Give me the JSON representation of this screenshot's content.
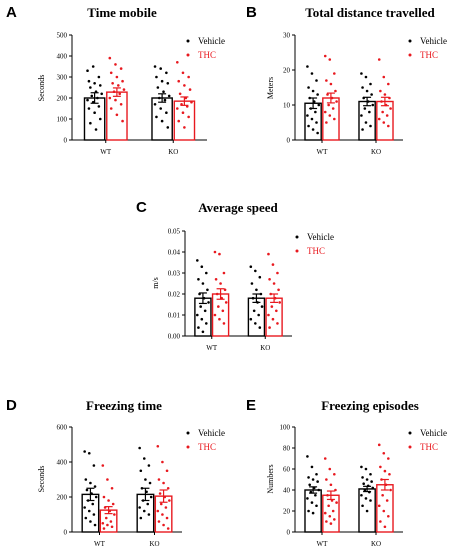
{
  "colors": {
    "vehicle": "#000000",
    "thc": "#e8191f"
  },
  "legend": [
    "Vehicle",
    "THC"
  ],
  "panels": [
    {
      "letter": "A"
    },
    {
      "letter": "B"
    },
    {
      "letter": "C"
    },
    {
      "letter": "D"
    },
    {
      "letter": "E"
    }
  ],
  "chart_data": [
    {
      "type": "bar",
      "title": "Time mobile",
      "ylabel": "Seconds",
      "categories": [
        "WT",
        "KO"
      ],
      "ylim": [
        0,
        500
      ],
      "yticks": [
        "0",
        "100",
        "200",
        "300",
        "400",
        "500"
      ],
      "series": [
        {
          "name": "Vehicle",
          "values": [
            200,
            200
          ],
          "sem": [
            25,
            20
          ],
          "points": [
            [
              330,
              350,
              300,
              280,
              270,
              260,
              250,
              230,
              220,
              210,
              200,
              190,
              180,
              160,
              150,
              130,
              100,
              80,
              50
            ],
            [
              350,
              340,
              320,
              300,
              280,
              270,
              250,
              230,
              210,
              200,
              190,
              170,
              150,
              130,
              110,
              90,
              60
            ]
          ]
        },
        {
          "name": "THC",
          "values": [
            228,
            185
          ],
          "sem": [
            20,
            20
          ],
          "points": [
            [
              390,
              360,
              340,
              320,
              300,
              280,
              270,
              260,
              240,
              230,
              220,
              200,
              190,
              170,
              150,
              120,
              90
            ],
            [
              370,
              320,
              300,
              280,
              260,
              240,
              220,
              200,
              180,
              170,
              160,
              150,
              130,
              110,
              90,
              60
            ]
          ]
        }
      ]
    },
    {
      "type": "bar",
      "title": "Total distance travelled",
      "ylabel": "Meters",
      "categories": [
        "WT",
        "KO"
      ],
      "ylim": [
        0,
        30
      ],
      "yticks": [
        "0",
        "10",
        "20",
        "30"
      ],
      "series": [
        {
          "name": "Vehicle",
          "values": [
            10.5,
            11
          ],
          "sem": [
            1.5,
            1.2
          ],
          "points": [
            [
              21,
              19,
              17,
              15,
              14,
              13,
              12,
              11,
              10,
              9,
              8,
              7,
              6,
              5,
              4,
              3,
              2
            ],
            [
              19,
              18,
              16,
              15,
              14,
              13,
              12,
              11,
              10,
              9,
              8,
              7,
              5,
              4,
              3
            ]
          ]
        },
        {
          "name": "THC",
          "values": [
            12,
            11
          ],
          "sem": [
            1.4,
            1.2
          ],
          "points": [
            [
              24,
              23,
              19,
              17,
              16,
              14,
              13,
              12,
              11,
              10,
              9,
              8,
              7,
              6,
              5
            ],
            [
              23,
              18,
              16,
              14,
              13,
              12,
              11,
              10,
              9,
              8,
              7,
              6,
              5,
              4
            ]
          ]
        }
      ]
    },
    {
      "type": "bar",
      "title": "Average speed",
      "ylabel": "m/s",
      "categories": [
        "WT",
        "KO"
      ],
      "ylim": [
        0,
        0.05
      ],
      "yticks": [
        "0.00",
        "0.01",
        "0.02",
        "0.03",
        "0.04",
        "0.05"
      ],
      "series": [
        {
          "name": "Vehicle",
          "values": [
            0.018,
            0.018
          ],
          "sem": [
            0.0025,
            0.002
          ],
          "points": [
            [
              0.036,
              0.033,
              0.03,
              0.027,
              0.025,
              0.022,
              0.02,
              0.018,
              0.016,
              0.014,
              0.012,
              0.01,
              0.008,
              0.006,
              0.004,
              0.002
            ],
            [
              0.033,
              0.031,
              0.028,
              0.025,
              0.022,
              0.02,
              0.018,
              0.016,
              0.014,
              0.012,
              0.01,
              0.008,
              0.006,
              0.004
            ]
          ]
        },
        {
          "name": "THC",
          "values": [
            0.02,
            0.018
          ],
          "sem": [
            0.0025,
            0.002
          ],
          "points": [
            [
              0.04,
              0.039,
              0.03,
              0.027,
              0.025,
              0.022,
              0.02,
              0.018,
              0.016,
              0.014,
              0.012,
              0.01,
              0.008,
              0.006
            ],
            [
              0.039,
              0.034,
              0.03,
              0.027,
              0.025,
              0.022,
              0.02,
              0.018,
              0.016,
              0.014,
              0.012,
              0.01,
              0.008,
              0.006,
              0.004
            ]
          ]
        }
      ]
    },
    {
      "type": "bar",
      "title": "Freezing time",
      "ylabel": "Seconds",
      "categories": [
        "WT",
        "KO"
      ],
      "ylim": [
        0,
        600
      ],
      "yticks": [
        "0",
        "200",
        "400",
        "600"
      ],
      "series": [
        {
          "name": "Vehicle",
          "values": [
            215,
            215
          ],
          "sem": [
            35,
            35
          ],
          "points": [
            [
              460,
              450,
              380,
              300,
              280,
              260,
              240,
              220,
              200,
              180,
              160,
              140,
              120,
              100,
              80,
              60,
              40
            ],
            [
              480,
              420,
              380,
              350,
              300,
              280,
              250,
              230,
              200,
              180,
              160,
              140,
              120,
              100,
              80
            ]
          ]
        },
        {
          "name": "THC",
          "values": [
            125,
            205
          ],
          "sem": [
            20,
            35
          ],
          "points": [
            [
              380,
              300,
              250,
              200,
              180,
              160,
              140,
              120,
              100,
              80,
              60,
              50,
              40,
              30,
              20
            ],
            [
              490,
              400,
              350,
              300,
              280,
              250,
              220,
              200,
              180,
              160,
              140,
              120,
              100,
              80,
              60,
              40,
              20
            ]
          ]
        }
      ]
    },
    {
      "type": "bar",
      "title": "Freezing episodes",
      "ylabel": "Numbers",
      "categories": [
        "WT",
        "KO"
      ],
      "ylim": [
        0,
        100
      ],
      "yticks": [
        "0",
        "20",
        "40",
        "60",
        "80",
        "100"
      ],
      "series": [
        {
          "name": "Vehicle",
          "values": [
            40,
            41
          ],
          "sem": [
            3,
            2.5
          ],
          "points": [
            [
              72,
              62,
              55,
              52,
              50,
              48,
              45,
              42,
              40,
              38,
              35,
              32,
              28,
              25,
              20,
              18
            ],
            [
              62,
              60,
              55,
              52,
              50,
              48,
              46,
              44,
              42,
              40,
              38,
              35,
              32,
              30,
              25,
              20
            ]
          ]
        },
        {
          "name": "THC",
          "values": [
            35,
            45
          ],
          "sem": [
            4,
            5
          ],
          "points": [
            [
              70,
              60,
              55,
              50,
              45,
              40,
              35,
              30,
              28,
              25,
              20,
              18,
              15,
              12,
              10,
              8
            ],
            [
              83,
              75,
              70,
              62,
              58,
              55,
              50,
              45,
              40,
              35,
              30,
              25,
              20,
              15,
              10,
              5
            ]
          ]
        }
      ]
    }
  ]
}
